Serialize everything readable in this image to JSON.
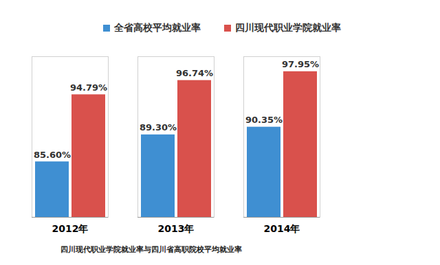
{
  "chart_data": {
    "type": "bar",
    "caption": "四川现代职业学院就业率与四川省高职院校平均就业率",
    "categories": [
      "2012年",
      "2013年",
      "2014年"
    ],
    "series": [
      {
        "name": "全省高校平均就业率",
        "color": "#3f8fd2",
        "values": [
          85.6,
          89.3,
          90.35
        ],
        "value_labels": [
          "85.60%",
          "89.30%",
          "90.35%"
        ]
      },
      {
        "name": "四川现代职业学院就业率",
        "color": "#d9514c",
        "values": [
          94.79,
          96.74,
          97.95
        ],
        "value_labels": [
          "94.79%",
          "96.74%",
          "97.95%"
        ]
      }
    ],
    "ylim": [
      78,
      100
    ],
    "yticks": [],
    "tick_labels": "x",
    "data_labels": true,
    "legend": "top",
    "grid": false
  }
}
